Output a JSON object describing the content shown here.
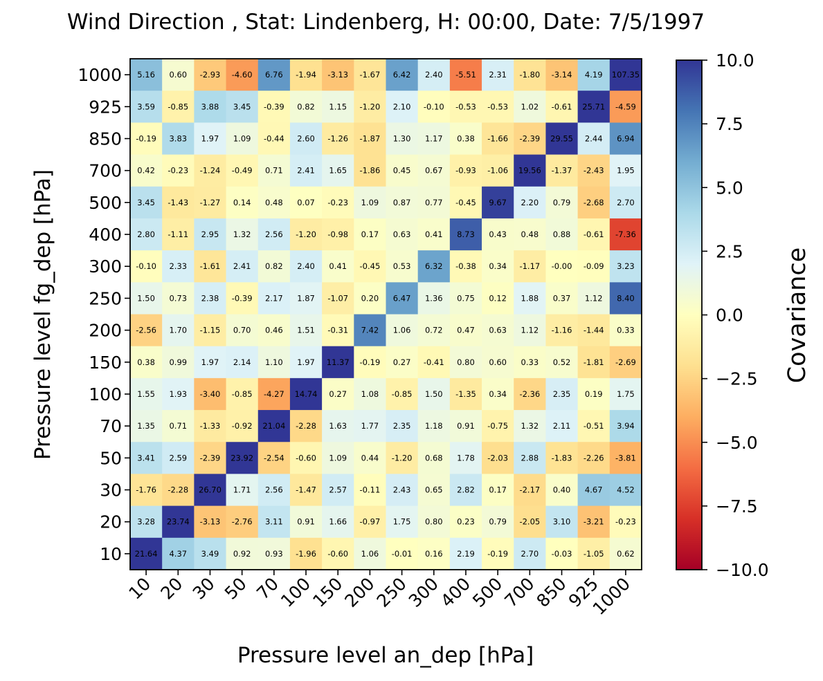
{
  "chart_data": {
    "type": "heatmap",
    "title": "Wind Direction , Stat: Lindenberg, H: 00:00, Date: 7/5/1997",
    "xlabel": "Pressure level an_dep [hPa]",
    "ylabel": "Pressure level fg_dep [hPa]",
    "x_categories": [
      "10",
      "20",
      "30",
      "50",
      "70",
      "100",
      "150",
      "200",
      "250",
      "300",
      "400",
      "500",
      "700",
      "850",
      "925",
      "1000"
    ],
    "y_categories": [
      "1000",
      "925",
      "850",
      "700",
      "500",
      "400",
      "300",
      "250",
      "200",
      "150",
      "100",
      "70",
      "50",
      "30",
      "20",
      "10"
    ],
    "values": [
      [
        "5.16",
        "0.60",
        "-2.93",
        "-4.60",
        "6.76",
        "-1.94",
        "-3.13",
        "-1.67",
        "6.42",
        "2.40",
        "-5.51",
        "2.31",
        "-1.80",
        "-3.14",
        "4.19",
        "107.35"
      ],
      [
        "3.59",
        "-0.85",
        "3.88",
        "3.45",
        "-0.39",
        "0.82",
        "1.15",
        "-1.20",
        "2.10",
        "-0.10",
        "-0.53",
        "-0.53",
        "1.02",
        "-0.61",
        "25.71",
        "-4.59"
      ],
      [
        "-0.19",
        "3.83",
        "1.97",
        "1.09",
        "-0.44",
        "2.60",
        "-1.26",
        "-1.87",
        "1.30",
        "1.17",
        "0.38",
        "-1.66",
        "-2.39",
        "29.55",
        "2.44",
        "6.94"
      ],
      [
        "0.42",
        "-0.23",
        "-1.24",
        "-0.49",
        "0.71",
        "2.41",
        "1.65",
        "-1.86",
        "0.45",
        "0.67",
        "-0.93",
        "-1.06",
        "19.56",
        "-1.37",
        "-2.43",
        "1.95"
      ],
      [
        "3.45",
        "-1.43",
        "-1.27",
        "0.14",
        "0.48",
        "0.07",
        "-0.23",
        "1.09",
        "0.87",
        "0.77",
        "-0.45",
        "9.67",
        "2.20",
        "0.79",
        "-2.68",
        "2.70"
      ],
      [
        "2.80",
        "-1.11",
        "2.95",
        "1.32",
        "2.56",
        "-1.20",
        "-0.98",
        "0.17",
        "0.63",
        "0.41",
        "8.73",
        "0.43",
        "0.48",
        "0.88",
        "-0.61",
        "-7.36"
      ],
      [
        "-0.10",
        "2.33",
        "-1.61",
        "2.41",
        "0.82",
        "2.40",
        "0.41",
        "-0.45",
        "0.53",
        "6.32",
        "-0.38",
        "0.34",
        "-1.17",
        "-0.00",
        "-0.09",
        "3.23"
      ],
      [
        "1.50",
        "0.73",
        "2.38",
        "-0.39",
        "2.17",
        "1.87",
        "-1.07",
        "0.20",
        "6.47",
        "1.36",
        "0.75",
        "0.12",
        "1.88",
        "0.37",
        "1.12",
        "8.40"
      ],
      [
        "-2.56",
        "1.70",
        "-1.15",
        "0.70",
        "0.46",
        "1.51",
        "-0.31",
        "7.42",
        "1.06",
        "0.72",
        "0.47",
        "0.63",
        "1.12",
        "-1.16",
        "-1.44",
        "0.33"
      ],
      [
        "0.38",
        "0.99",
        "1.97",
        "2.14",
        "1.10",
        "1.97",
        "11.37",
        "-0.19",
        "0.27",
        "-0.41",
        "0.80",
        "0.60",
        "0.33",
        "0.52",
        "-1.81",
        "-2.69"
      ],
      [
        "1.55",
        "1.93",
        "-3.40",
        "-0.85",
        "-4.27",
        "14.74",
        "0.27",
        "1.08",
        "-0.85",
        "1.50",
        "-1.35",
        "0.34",
        "-2.36",
        "2.35",
        "0.19",
        "1.75"
      ],
      [
        "1.35",
        "0.71",
        "-1.33",
        "-0.92",
        "21.04",
        "-2.28",
        "1.63",
        "1.77",
        "2.35",
        "1.18",
        "0.91",
        "-0.75",
        "1.32",
        "2.11",
        "-0.51",
        "3.94"
      ],
      [
        "3.41",
        "2.59",
        "-2.39",
        "23.92",
        "-2.54",
        "-0.60",
        "1.09",
        "0.44",
        "-1.20",
        "0.68",
        "1.78",
        "-2.03",
        "2.88",
        "-1.83",
        "-2.26",
        "-3.81"
      ],
      [
        "-1.76",
        "-2.28",
        "26.70",
        "1.71",
        "2.56",
        "-1.47",
        "2.57",
        "-0.11",
        "2.43",
        "0.65",
        "2.82",
        "0.17",
        "-2.17",
        "0.40",
        "4.67",
        "4.52"
      ],
      [
        "3.28",
        "23.74",
        "-3.13",
        "-2.76",
        "3.11",
        "0.91",
        "1.66",
        "-0.97",
        "1.75",
        "0.80",
        "0.23",
        "0.79",
        "-2.05",
        "3.10",
        "-3.21",
        "-0.23"
      ],
      [
        "21.64",
        "4.37",
        "3.49",
        "0.92",
        "0.93",
        "-1.96",
        "-0.60",
        "1.06",
        "-0.01",
        "0.16",
        "2.19",
        "-0.19",
        "2.70",
        "-0.03",
        "-1.05",
        "0.62"
      ]
    ],
    "colorbar": {
      "label": "Covariance",
      "range": [
        -10.0,
        10.0
      ],
      "ticks": [
        "−10.0",
        "−7.5",
        "−5.0",
        "−2.5",
        "0.0",
        "2.5",
        "5.0",
        "7.5",
        "10.0"
      ],
      "tick_values": [
        -10,
        -7.5,
        -5,
        -2.5,
        0,
        2.5,
        5,
        7.5,
        10
      ],
      "colormap": "RdYlBu",
      "colors": [
        "#a50026",
        "#d73027",
        "#f46d43",
        "#fdae61",
        "#fee090",
        "#ffffbf",
        "#e0f3f8",
        "#abd9e9",
        "#74add1",
        "#4575b4",
        "#313695"
      ]
    },
    "grid": false,
    "legend": "none"
  }
}
